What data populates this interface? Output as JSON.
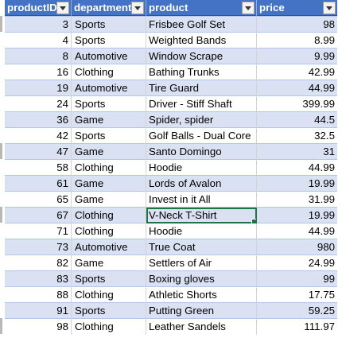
{
  "table": {
    "headers": {
      "productID": "productID",
      "department": "department",
      "product": "product",
      "price": "price"
    },
    "rows": [
      {
        "productID": "3",
        "department": "Sports",
        "product": "Frisbee Golf Set",
        "price": "98"
      },
      {
        "productID": "4",
        "department": "Sports",
        "product": "Weighted Bands",
        "price": "8.99"
      },
      {
        "productID": "8",
        "department": "Automotive",
        "product": "Window Scrape",
        "price": "9.99"
      },
      {
        "productID": "16",
        "department": "Clothing",
        "product": "Bathing Trunks",
        "price": "42.99"
      },
      {
        "productID": "19",
        "department": "Automotive",
        "product": "Tire Guard",
        "price": "44.99"
      },
      {
        "productID": "24",
        "department": "Sports",
        "product": "Driver - Stiff Shaft",
        "price": "399.99"
      },
      {
        "productID": "36",
        "department": "Game",
        "product": "Spider, spider",
        "price": "44.5"
      },
      {
        "productID": "42",
        "department": "Sports",
        "product": "Golf Balls - Dual Core",
        "price": "32.5"
      },
      {
        "productID": "47",
        "department": "Game",
        "product": "Santo Domingo",
        "price": "31"
      },
      {
        "productID": "58",
        "department": "Clothing",
        "product": "Hoodie",
        "price": "44.99"
      },
      {
        "productID": "61",
        "department": "Game",
        "product": "Lords of Avalon",
        "price": "19.99"
      },
      {
        "productID": "65",
        "department": "Game",
        "product": "Invest in it All",
        "price": "31.99"
      },
      {
        "productID": "67",
        "department": "Clothing",
        "product": "V-Neck T-Shirt",
        "price": "19.99"
      },
      {
        "productID": "71",
        "department": "Clothing",
        "product": "Hoodie",
        "price": "44.99"
      },
      {
        "productID": "73",
        "department": "Automotive",
        "product": "True Coat",
        "price": "980"
      },
      {
        "productID": "82",
        "department": "Game",
        "product": "Settlers of Air",
        "price": "24.99"
      },
      {
        "productID": "83",
        "department": "Sports",
        "product": "Boxing gloves",
        "price": "99"
      },
      {
        "productID": "88",
        "department": "Clothing",
        "product": "Athletic Shorts",
        "price": "17.75"
      },
      {
        "productID": "91",
        "department": "Sports",
        "product": "Putting Green",
        "price": "59.25"
      },
      {
        "productID": "98",
        "department": "Clothing",
        "product": "Leather Sandels",
        "price": "111.97"
      }
    ],
    "active_cell": {
      "row": 12,
      "column": "product"
    }
  },
  "colors": {
    "header_bg": "#4472c4",
    "band_bg": "#d9e1f2",
    "selection": "#217346"
  },
  "icons": {
    "filter": "filter-dropdown-icon"
  }
}
